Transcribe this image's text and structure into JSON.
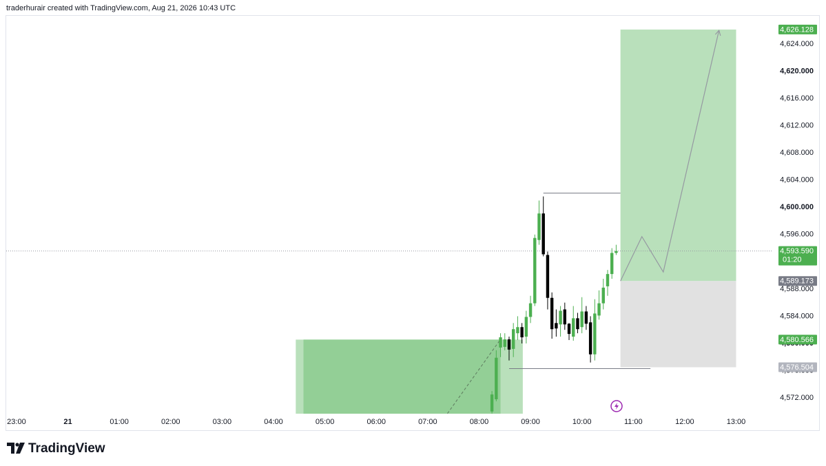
{
  "header": "traderhurair created with TradingView.com, Aug 21, 2026 10:43 UTC",
  "footer": {
    "logo": "TradingView"
  },
  "chart_data": {
    "type": "candlestick",
    "x": [
      "08:15",
      "08:20",
      "08:25",
      "08:30",
      "08:35",
      "08:40",
      "08:45",
      "08:50",
      "08:55",
      "09:00",
      "09:05",
      "09:10",
      "09:15",
      "09:20",
      "09:25",
      "09:30",
      "09:35",
      "09:40",
      "09:45",
      "09:50",
      "09:55",
      "10:00",
      "10:05",
      "10:10",
      "10:15",
      "10:20",
      "10:25",
      "10:30",
      "10:35",
      "10:40"
    ],
    "open": [
      4570.0,
      4571.8,
      4579.4,
      4579.5,
      4580.6,
      4579.2,
      4581.5,
      4582.4,
      4581.0,
      4583.9,
      4585.9,
      4595.2,
      4599.1,
      4593.0,
      4586.7,
      4583.0,
      4582.8,
      4585.0,
      4582.9,
      4581.0,
      4583.7,
      4582.4,
      4584.7,
      4583.1,
      4578.4,
      4584.1,
      4585.9,
      4588.4,
      4590.2,
      4593.3
    ],
    "high": [
      4573.0,
      4579.0,
      4581.5,
      4581.5,
      4581.0,
      4583.0,
      4584.0,
      4583.0,
      4584.8,
      4587.0,
      4596.0,
      4601.0,
      4601.6,
      4593.5,
      4587.5,
      4585.0,
      4585.5,
      4586.0,
      4583.0,
      4585.5,
      4584.5,
      4586.8,
      4585.5,
      4584.0,
      4586.5,
      4587.8,
      4589.5,
      4590.8,
      4594.0,
      4594.5
    ],
    "low": [
      4569.7,
      4571.5,
      4578.0,
      4579.0,
      4577.5,
      4578.0,
      4580.5,
      4580.0,
      4580.0,
      4583.0,
      4585.5,
      4594.5,
      4592.8,
      4585.0,
      4580.7,
      4581.0,
      4581.0,
      4582.0,
      4580.5,
      4580.4,
      4581.5,
      4581.5,
      4582.0,
      4577.2,
      4577.5,
      4583.5,
      4585.0,
      4587.0,
      4589.5,
      4593.0
    ],
    "close": [
      4572.5,
      4577.9,
      4580.9,
      4580.6,
      4579.1,
      4582.1,
      4582.4,
      4580.9,
      4583.9,
      4585.9,
      4595.5,
      4599.1,
      4593.1,
      4586.7,
      4582.1,
      4582.2,
      4584.8,
      4582.8,
      4581.4,
      4583.7,
      4582.1,
      4584.7,
      4582.9,
      4578.4,
      4584.4,
      4585.9,
      4588.2,
      4590.2,
      4593.3,
      4593.59
    ],
    "up_color": "#4caf50",
    "down_color": "#000000",
    "xlim": [
      "22:48",
      "13:43"
    ],
    "xticks": [
      "23:00",
      {
        "value": "00:00",
        "label": "21"
      },
      "01:00",
      "02:00",
      "03:00",
      "04:00",
      "05:00",
      "06:00",
      "07:00",
      "08:00",
      "09:00",
      "10:00",
      "11:00",
      "12:00",
      "13:00"
    ],
    "ylim": [
      4569.68,
      4628.14
    ],
    "yticks": [
      {
        "value": 4572,
        "label": "4,572.000"
      },
      {
        "value": 4576,
        "label": "4,576.000"
      },
      {
        "value": 4580,
        "label": "4,580.000"
      },
      {
        "value": 4584,
        "label": "4,584.000"
      },
      {
        "value": 4588,
        "label": "4,588.000"
      },
      {
        "value": 4592,
        "label": "4,592.000"
      },
      {
        "value": 4596,
        "label": "4,596.000"
      },
      {
        "value": 4600,
        "label": "4,600.000"
      },
      {
        "value": 4604,
        "label": "4,604.000"
      },
      {
        "value": 4608,
        "label": "4,608.000"
      },
      {
        "value": 4612,
        "label": "4,612.000"
      },
      {
        "value": 4616,
        "label": "4,616.000"
      },
      {
        "value": 4620,
        "label": "4,620.000"
      },
      {
        "value": 4624,
        "label": "4,624.000"
      }
    ],
    "current_price": {
      "value": 4593.59,
      "label": "4,593.590",
      "countdown": "01:20",
      "color": "#4caf50"
    },
    "price_labels": [
      {
        "value": 4626.128,
        "label": "4,626.128",
        "color": "#4caf50"
      },
      {
        "value": 4589.173,
        "label": "4,589.173",
        "color": "#787b86"
      },
      {
        "value": 4580.566,
        "label": "4,580.566",
        "color": "#4caf50"
      },
      {
        "value": 4576.504,
        "label": "4,576.504",
        "color": "#b2b5be"
      }
    ],
    "long_position": {
      "start": "10:45",
      "end": "13:00",
      "entry": 4589.173,
      "target": 4626.128,
      "stop": 4576.504,
      "profit_color": "#b9e0bb",
      "loss_color": "#e1e1e1"
    },
    "zone": {
      "outer_start": "04:26",
      "outer_end": "08:51",
      "inner_start": "04:35",
      "inner_end": "08:25",
      "top": 4580.566,
      "outer_color": "#b9e0bb",
      "inner_color": "#93cf96"
    },
    "hlines": [
      {
        "start": "09:15",
        "end": "10:45",
        "value": 4602.1
      },
      {
        "start": "08:35",
        "end": "11:20",
        "value": 4576.3
      }
    ],
    "projection": [
      [
        "10:45",
        4589.173
      ],
      [
        "11:10",
        4595.7
      ],
      [
        "11:35",
        4590.5
      ],
      [
        "12:40",
        4626.0
      ]
    ],
    "dashed_line": [
      [
        "07:23",
        4569.7
      ],
      [
        "08:25",
        4580.6
      ]
    ]
  }
}
